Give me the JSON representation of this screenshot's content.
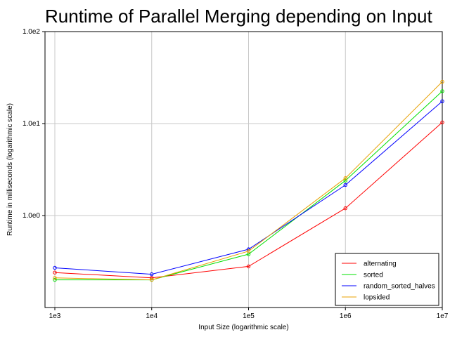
{
  "chart_data": {
    "type": "line",
    "title": "Runtime of Parallel Merging depending on Input",
    "xlabel": "Input Size (logarithmic scale)",
    "ylabel": "Runtime in milliseconds (logarithmic scale)",
    "x_scale": "log",
    "y_scale": "log",
    "xlim": [
      1000,
      10000000
    ],
    "ylim": [
      0.1,
      100
    ],
    "x_ticks": [
      {
        "value": 1000,
        "label": "1e3"
      },
      {
        "value": 10000,
        "label": "1e4"
      },
      {
        "value": 100000,
        "label": "1e5"
      },
      {
        "value": 1000000,
        "label": "1e6"
      },
      {
        "value": 10000000,
        "label": "1e7"
      }
    ],
    "y_ticks": [
      {
        "value": 1,
        "label": "1.0e0"
      },
      {
        "value": 10,
        "label": "1.0e1"
      },
      {
        "value": 100,
        "label": "1.0e2"
      }
    ],
    "grid": true,
    "legend_position": "bottom-right",
    "x": [
      1000,
      10000,
      100000,
      1000000,
      10000000
    ],
    "series": [
      {
        "name": "alternating",
        "color": "#ff0000",
        "values": [
          0.24,
          0.21,
          0.28,
          1.2,
          10.3
        ]
      },
      {
        "name": "sorted",
        "color": "#00e000",
        "values": [
          0.2,
          0.2,
          0.38,
          2.4,
          22.5
        ]
      },
      {
        "name": "random_sorted_halves",
        "color": "#0000ff",
        "values": [
          0.27,
          0.23,
          0.43,
          2.15,
          17.5
        ]
      },
      {
        "name": "lopsided",
        "color": "#e8a000",
        "values": [
          0.21,
          0.2,
          0.41,
          2.55,
          28.5
        ]
      }
    ]
  }
}
